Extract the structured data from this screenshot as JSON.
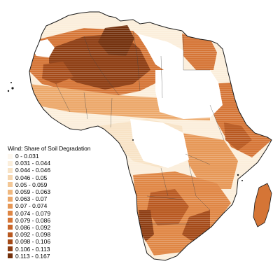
{
  "legend": {
    "title": "Wind: Share of Soil Degradation",
    "classes": [
      {
        "label": "0 - 0.031",
        "color": "#fdf7ee"
      },
      {
        "label": "0.031 - 0.044",
        "color": "#fbeedb"
      },
      {
        "label": "0.044 - 0.046",
        "color": "#f8e3c6"
      },
      {
        "label": "0.046 - 0.05",
        "color": "#f6d6af"
      },
      {
        "label": "0.05 - 0.059",
        "color": "#f3c796"
      },
      {
        "label": "0.059 - 0.063",
        "color": "#f0b87f"
      },
      {
        "label": "0.063 - 0.07",
        "color": "#eca86a"
      },
      {
        "label": "0.07 - 0.074",
        "color": "#e69756"
      },
      {
        "label": "0.074 - 0.079",
        "color": "#df8644"
      },
      {
        "label": "0.079 - 0.086",
        "color": "#d57536"
      },
      {
        "label": "0.086 - 0.092",
        "color": "#c9662a"
      },
      {
        "label": "0.092 - 0.098",
        "color": "#b85820"
      },
      {
        "label": "0.098 - 0.106",
        "color": "#a44a18"
      },
      {
        "label": "0.106 - 0.113",
        "color": "#8d3d12"
      },
      {
        "label": "0.113 - 0.167",
        "color": "#73300c"
      }
    ]
  },
  "colors": {
    "no_data": "#ffffff",
    "coastline": "#1a1a1a",
    "borders": "#444444"
  }
}
